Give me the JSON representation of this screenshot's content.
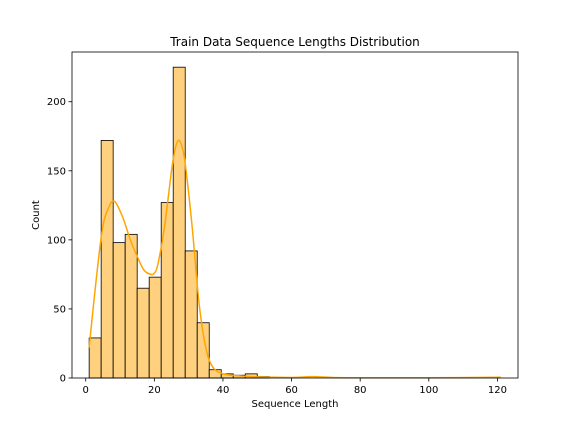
{
  "chart_data": {
    "type": "bar",
    "title": "Train Data Sequence Lengths Distribution",
    "xlabel": "Sequence Length",
    "ylabel": "Count",
    "xlim": [
      -4,
      126
    ],
    "ylim": [
      0,
      236
    ],
    "xticks": [
      0,
      20,
      40,
      60,
      80,
      100,
      120
    ],
    "yticks": [
      0,
      50,
      100,
      150,
      200
    ],
    "bin_width": 3.5,
    "bins": [
      {
        "start": 1.0,
        "count": 29
      },
      {
        "start": 4.5,
        "count": 172
      },
      {
        "start": 8.0,
        "count": 98
      },
      {
        "start": 11.5,
        "count": 104
      },
      {
        "start": 15.0,
        "count": 65
      },
      {
        "start": 18.5,
        "count": 73
      },
      {
        "start": 22.0,
        "count": 127
      },
      {
        "start": 25.5,
        "count": 225
      },
      {
        "start": 29.0,
        "count": 92
      },
      {
        "start": 32.5,
        "count": 40
      },
      {
        "start": 36.0,
        "count": 6
      },
      {
        "start": 39.5,
        "count": 3
      },
      {
        "start": 43.0,
        "count": 2
      },
      {
        "start": 46.5,
        "count": 3
      },
      {
        "start": 50.0,
        "count": 1
      }
    ],
    "kde": {
      "x": [
        1,
        3,
        5,
        7,
        8,
        9,
        11,
        13,
        15,
        17,
        19,
        20,
        21,
        23,
        25,
        26,
        27,
        28,
        29,
        31,
        33,
        35,
        37,
        40,
        45,
        50,
        60,
        66,
        72,
        80,
        100,
        121
      ],
      "y": [
        22,
        70,
        110,
        125,
        128,
        126,
        115,
        100,
        88,
        78,
        75,
        76,
        82,
        110,
        150,
        165,
        172,
        168,
        155,
        110,
        55,
        22,
        8,
        3,
        1.5,
        0.8,
        0.4,
        1,
        0.4,
        0.2,
        0.2,
        0.5
      ]
    },
    "colors": {
      "bar_fill": "#ffd17f",
      "bar_edge": "#000000",
      "kde_line": "#ffa500"
    },
    "grid": false
  }
}
